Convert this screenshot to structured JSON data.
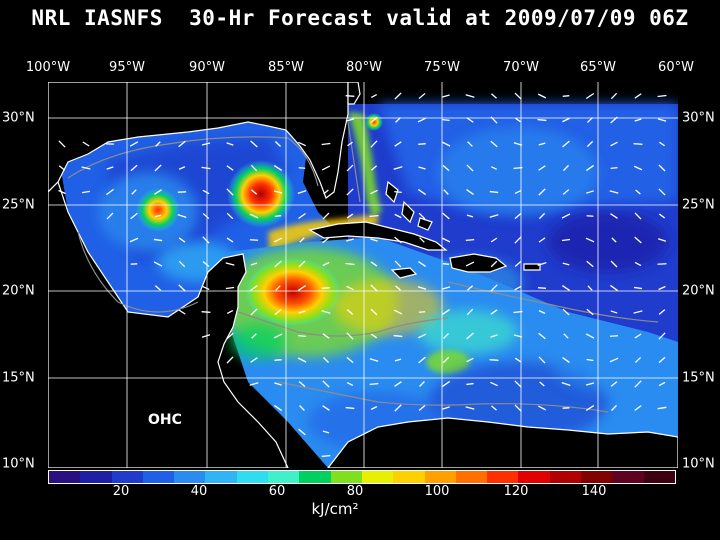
{
  "title": "NRL IASNFS  30-Hr Forecast valid at 2009/07/09 06Z",
  "field_label": "OHC",
  "units": "kJ/cm²",
  "longitude_labels": [
    "100°W",
    "95°W",
    "90°W",
    "85°W",
    "80°W",
    "75°W",
    "70°W",
    "65°W",
    "60°W"
  ],
  "latitude_labels": [
    "30°N",
    "25°N",
    "20°N",
    "15°N",
    "10°N"
  ],
  "colorbar": {
    "colors": [
      "#2a0f80",
      "#1f1fa6",
      "#1f3ccc",
      "#2060e6",
      "#2a8cf0",
      "#30b4f4",
      "#30dcf0",
      "#40f0c8",
      "#00d060",
      "#80e020",
      "#e6f000",
      "#ffd000",
      "#ffa000",
      "#ff7000",
      "#ff3000",
      "#e00000",
      "#b00000",
      "#800000",
      "#600020",
      "#3c0010"
    ],
    "tick_labels": [
      "20",
      "40",
      "60",
      "80",
      "100",
      "120",
      "140"
    ]
  },
  "colors": {
    "background": "#000000",
    "land": "#000000",
    "grid": "#ffffff",
    "coast": "#ffffff",
    "contour": "#8c8c8c"
  }
}
